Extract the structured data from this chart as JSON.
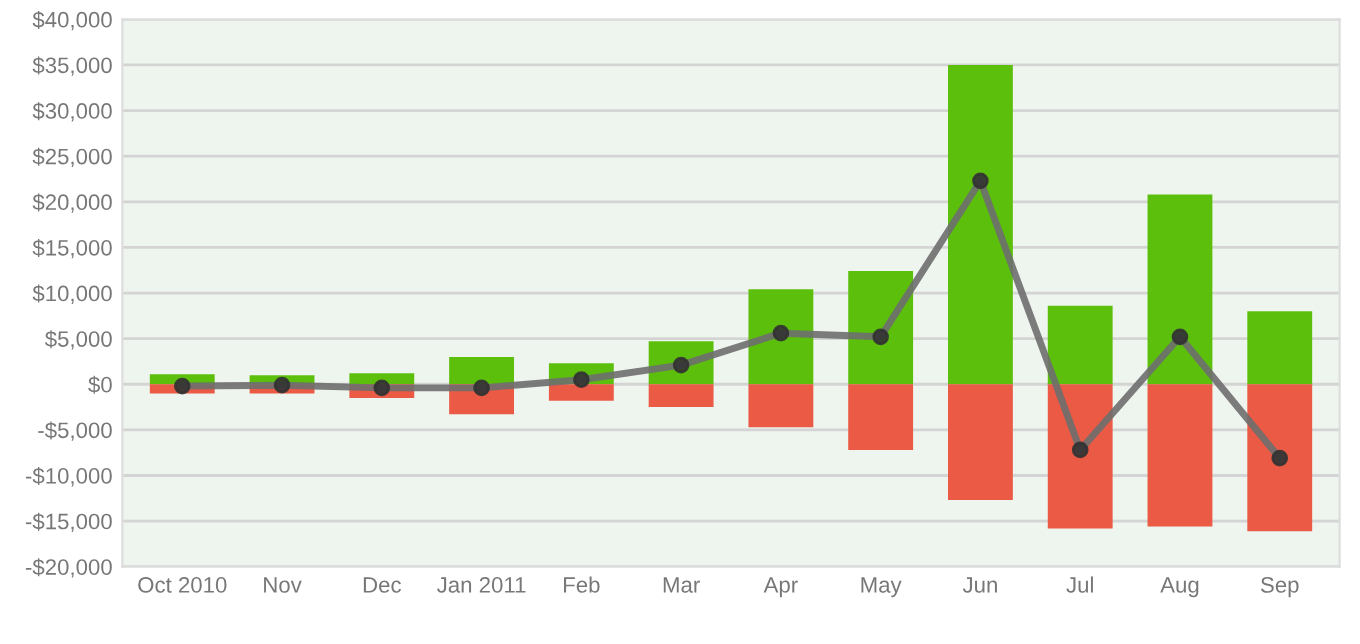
{
  "chart_data": {
    "type": "bar",
    "stacked": true,
    "categories": [
      "Oct 2010",
      "Nov",
      "Dec",
      "Jan 2011",
      "Feb",
      "Mar",
      "Apr",
      "May",
      "Jun",
      "Jul",
      "Aug",
      "Sep"
    ],
    "series": [
      {
        "color": "#5cbf0c",
        "values": [
          1100,
          1000,
          1200,
          3000,
          2300,
          4700,
          10400,
          12400,
          35000,
          8600,
          20800,
          8000
        ]
      },
      {
        "color": "#ea5a44",
        "values": [
          -1000,
          -1000,
          -1500,
          -3300,
          -1800,
          -2500,
          -4700,
          -7200,
          -12700,
          -15800,
          -15600,
          -16100
        ]
      },
      {
        "type": "line",
        "color": "#6e6e6e",
        "marker": "circle",
        "values": [
          -200,
          -100,
          -400,
          -400,
          500,
          2100,
          5600,
          5200,
          22300,
          -7200,
          5200,
          -8100
        ]
      }
    ],
    "ylim": [
      -20000,
      40000
    ],
    "yticks": [
      {
        "value": -20000,
        "label": "-$20,000"
      },
      {
        "value": -15000,
        "label": "-$15,000"
      },
      {
        "value": -10000,
        "label": "-$10,000"
      },
      {
        "value": -5000,
        "label": "-$5,000"
      },
      {
        "value": 0,
        "label": "$0"
      },
      {
        "value": 5000,
        "label": "$5,000"
      },
      {
        "value": 10000,
        "label": "$10,000"
      },
      {
        "value": 15000,
        "label": "$15,000"
      },
      {
        "value": 20000,
        "label": "$20,000"
      },
      {
        "value": 25000,
        "label": "$25,000"
      },
      {
        "value": 30000,
        "label": "$30,000"
      },
      {
        "value": 35000,
        "label": "$35,000"
      },
      {
        "value": 40000,
        "label": "$40,000"
      }
    ],
    "grid": "y"
  }
}
